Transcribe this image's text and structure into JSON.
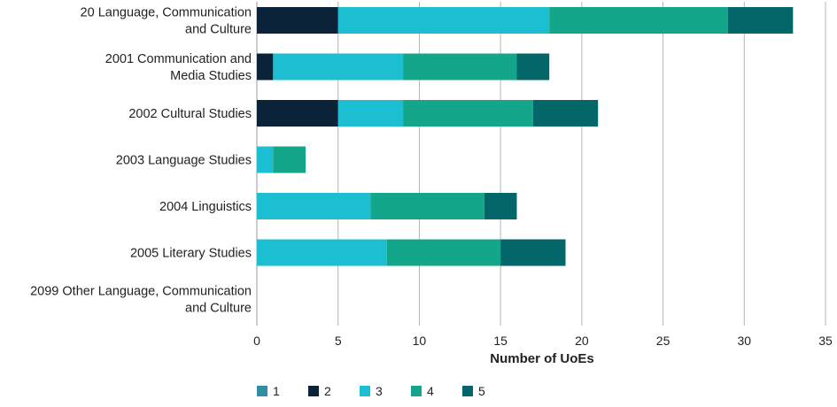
{
  "chart_data": {
    "type": "bar",
    "orientation": "horizontal",
    "stacked": true,
    "title": "",
    "xlabel": "Number of UoEs",
    "ylabel": "",
    "xlim": [
      0,
      35
    ],
    "xticks": [
      0,
      5,
      10,
      15,
      20,
      25,
      30,
      35
    ],
    "grid": true,
    "legend_position": "bottom",
    "categories": [
      [
        "20 Language, Communication",
        "and Culture"
      ],
      [
        "2001 Communication and",
        "Media Studies"
      ],
      [
        "2002 Cultural Studies"
      ],
      [
        "2003 Language Studies"
      ],
      [
        "2004 Linguistics"
      ],
      [
        "2005 Literary Studies"
      ],
      [
        "2099 Other Language, Communication",
        "and Culture"
      ]
    ],
    "series": [
      {
        "name": "1",
        "color": "#2e8fa3",
        "values": [
          0,
          0,
          0,
          0,
          0,
          0,
          0
        ]
      },
      {
        "name": "2",
        "color": "#0b2338",
        "values": [
          5,
          1,
          5,
          0,
          0,
          0,
          0
        ]
      },
      {
        "name": "3",
        "color": "#1cbfd2",
        "values": [
          13,
          8,
          4,
          1,
          7,
          8,
          0
        ]
      },
      {
        "name": "4",
        "color": "#14a68a",
        "values": [
          11,
          7,
          8,
          2,
          7,
          7,
          0
        ]
      },
      {
        "name": "5",
        "color": "#03676a",
        "values": [
          4,
          2,
          4,
          0,
          2,
          4,
          0
        ]
      }
    ]
  }
}
